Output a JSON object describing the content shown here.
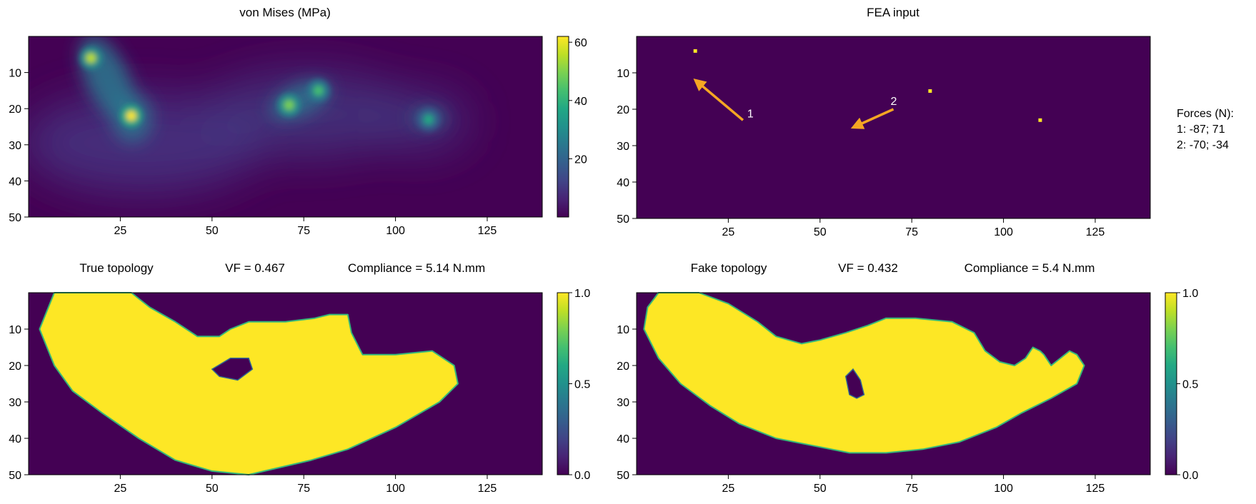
{
  "chart_data": [
    {
      "id": "stress",
      "type": "heatmap",
      "title": "von Mises (MPa)",
      "colormap": "viridis",
      "grid_shape": [
        50,
        140
      ],
      "x_ticks": [
        25,
        50,
        75,
        100,
        125
      ],
      "y_ticks": [
        10,
        20,
        30,
        40,
        50
      ],
      "colorbar": {
        "range": [
          0,
          62
        ],
        "ticks": [
          20,
          40,
          60
        ]
      },
      "hotspots": [
        {
          "x": 17,
          "y": 6,
          "value": 55
        },
        {
          "x": 28,
          "y": 22,
          "value": 62
        },
        {
          "x": 71,
          "y": 19,
          "value": 48
        },
        {
          "x": 79,
          "y": 15,
          "value": 45
        },
        {
          "x": 109,
          "y": 23,
          "value": 35
        }
      ]
    },
    {
      "id": "fea",
      "type": "heatmap",
      "title": "FEA input",
      "colormap": "viridis",
      "grid_shape": [
        50,
        140
      ],
      "x_ticks": [
        25,
        50,
        75,
        100,
        125
      ],
      "y_ticks": [
        10,
        20,
        30,
        40,
        50
      ],
      "supports": [
        {
          "x": 16,
          "y": 4
        },
        {
          "x": 80,
          "y": 15
        },
        {
          "x": 110,
          "y": 23
        }
      ],
      "forces": [
        {
          "label": "1",
          "from": [
            29,
            23
          ],
          "to": [
            16,
            12
          ]
        },
        {
          "label": "2",
          "from": [
            70,
            20
          ],
          "to": [
            59,
            25
          ]
        }
      ],
      "forces_legend": [
        "Forces (N):",
        "1: -87; 71",
        "2: -70; -34"
      ]
    },
    {
      "id": "true",
      "type": "heatmap",
      "title": "True topology",
      "vf_label": "VF = 0.467",
      "compliance_label": "Compliance = 5.14 N.mm",
      "colormap": "viridis",
      "grid_shape": [
        50,
        140
      ],
      "x_ticks": [
        25,
        50,
        75,
        100,
        125
      ],
      "y_ticks": [
        10,
        20,
        30,
        40,
        50
      ],
      "colorbar": {
        "range": [
          0,
          1
        ],
        "ticks": [
          "0.0",
          "0.5",
          "1.0"
        ]
      },
      "outline": [
        [
          7,
          0
        ],
        [
          28,
          0
        ],
        [
          33,
          4
        ],
        [
          40,
          8
        ],
        [
          46,
          12
        ],
        [
          52,
          12
        ],
        [
          55,
          10
        ],
        [
          60,
          8
        ],
        [
          70,
          8
        ],
        [
          78,
          7
        ],
        [
          82,
          6
        ],
        [
          87,
          6
        ],
        [
          88,
          11
        ],
        [
          91,
          17
        ],
        [
          100,
          17
        ],
        [
          110,
          16
        ],
        [
          116,
          20
        ],
        [
          117,
          25
        ],
        [
          112,
          30
        ],
        [
          100,
          37
        ],
        [
          87,
          43
        ],
        [
          77,
          46
        ],
        [
          60,
          50
        ],
        [
          50,
          49
        ],
        [
          40,
          46
        ],
        [
          30,
          40
        ],
        [
          20,
          33
        ],
        [
          12,
          27
        ],
        [
          7,
          20
        ],
        [
          3,
          10
        ]
      ],
      "holes": [
        [
          [
            50,
            21
          ],
          [
            55,
            18
          ],
          [
            60,
            18
          ],
          [
            61,
            21
          ],
          [
            57,
            24
          ],
          [
            52,
            23
          ]
        ]
      ]
    },
    {
      "id": "fake",
      "type": "heatmap",
      "title": "Fake topology",
      "vf_label": "VF = 0.432",
      "compliance_label": "Compliance = 5.4 N.mm",
      "colormap": "viridis",
      "grid_shape": [
        50,
        140
      ],
      "x_ticks": [
        25,
        50,
        75,
        100,
        125
      ],
      "y_ticks": [
        10,
        20,
        30,
        40,
        50
      ],
      "colorbar": {
        "range": [
          0,
          1
        ],
        "ticks": [
          "0.0",
          "0.5",
          "1.0"
        ]
      },
      "outline": [
        [
          6,
          0
        ],
        [
          17,
          0
        ],
        [
          25,
          3
        ],
        [
          33,
          8
        ],
        [
          38,
          12
        ],
        [
          45,
          14
        ],
        [
          50,
          13
        ],
        [
          57,
          11
        ],
        [
          63,
          9
        ],
        [
          68,
          7
        ],
        [
          76,
          7
        ],
        [
          86,
          8
        ],
        [
          92,
          11
        ],
        [
          95,
          16
        ],
        [
          99,
          19
        ],
        [
          103,
          20
        ],
        [
          106,
          18
        ],
        [
          108,
          15
        ],
        [
          110,
          16
        ],
        [
          111,
          17
        ],
        [
          113,
          20
        ],
        [
          118,
          16
        ],
        [
          120,
          17
        ],
        [
          122,
          20
        ],
        [
          120,
          25
        ],
        [
          113,
          29
        ],
        [
          105,
          33
        ],
        [
          98,
          37
        ],
        [
          88,
          41
        ],
        [
          78,
          43
        ],
        [
          68,
          44
        ],
        [
          58,
          44
        ],
        [
          48,
          42
        ],
        [
          38,
          40
        ],
        [
          28,
          36
        ],
        [
          20,
          31
        ],
        [
          12,
          25
        ],
        [
          6,
          18
        ],
        [
          2,
          10
        ],
        [
          3,
          4
        ]
      ],
      "holes": [
        [
          [
            57,
            23
          ],
          [
            59,
            21
          ],
          [
            61,
            24
          ],
          [
            62,
            28
          ],
          [
            60,
            29
          ],
          [
            58,
            28
          ]
        ]
      ]
    }
  ]
}
